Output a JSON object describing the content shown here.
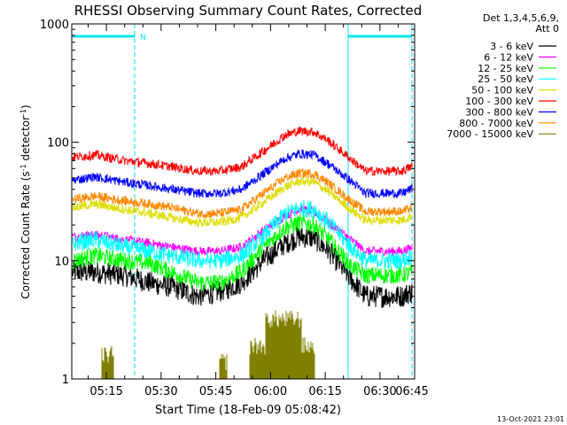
{
  "chart_data": {
    "type": "line",
    "title": "RHESSI Observing Summary Count Rates, Corrected",
    "xlabel": "Start Time (18-Feb-09 05:08:42)",
    "ylabel_parts": {
      "main": "Corrected Count Rate (s",
      "sup1": "-1",
      "mid": " detector",
      "sup2": "-1",
      "end": ")"
    },
    "y_scale": "log",
    "ylim": [
      1,
      1000
    ],
    "y_ticks": [
      {
        "value": 1,
        "label": "1"
      },
      {
        "value": 10,
        "label": "10"
      },
      {
        "value": 100,
        "label": "100"
      },
      {
        "value": 1000,
        "label": "1000"
      }
    ],
    "xlim_minutes": [
      5.5,
      99.5
    ],
    "x_ticks": [
      {
        "minutes": 15,
        "label": "05:15"
      },
      {
        "minutes": 30,
        "label": "05:30"
      },
      {
        "minutes": 45,
        "label": "05:45"
      },
      {
        "minutes": 60,
        "label": "06:00"
      },
      {
        "minutes": 75,
        "label": "06:15"
      },
      {
        "minutes": 90,
        "label": "06:30"
      },
      {
        "minutes": 105,
        "label": "06:45"
      }
    ],
    "legend_header": [
      "Det 1,3,4,5,6,9,",
      "Att 0"
    ],
    "legend_position": "right, outside plot",
    "grid": false,
    "colors": {
      "axis": "#000000",
      "spacecraft_bar": "#00e5ee",
      "boundary_line": "#00e5ee"
    },
    "series": [
      {
        "name": "3 - 6 keV",
        "color": "#000000",
        "points": [
          [
            6,
            8
          ],
          [
            12,
            8
          ],
          [
            20,
            7.5
          ],
          [
            27,
            6.5
          ],
          [
            33,
            6
          ],
          [
            40,
            5
          ],
          [
            46,
            5.5
          ],
          [
            52,
            6.5
          ],
          [
            58,
            10
          ],
          [
            64,
            14
          ],
          [
            68,
            16
          ],
          [
            72,
            15.5
          ],
          [
            76,
            12
          ],
          [
            82,
            7
          ],
          [
            86,
            5
          ],
          [
            90,
            5
          ],
          [
            96,
            5
          ],
          [
            99,
            5.5
          ]
        ]
      },
      {
        "name": "6 - 12 keV",
        "color": "#ff00ff",
        "points": [
          [
            6,
            16
          ],
          [
            12,
            16.5
          ],
          [
            20,
            15
          ],
          [
            27,
            14
          ],
          [
            33,
            13
          ],
          [
            40,
            12
          ],
          [
            46,
            12
          ],
          [
            52,
            13
          ],
          [
            58,
            18
          ],
          [
            64,
            24
          ],
          [
            68,
            27
          ],
          [
            72,
            26
          ],
          [
            76,
            21
          ],
          [
            82,
            15
          ],
          [
            86,
            12
          ],
          [
            90,
            12
          ],
          [
            96,
            12
          ],
          [
            99,
            13
          ]
        ]
      },
      {
        "name": "12 - 25 keV",
        "color": "#00ff00",
        "points": [
          [
            6,
            10
          ],
          [
            12,
            11
          ],
          [
            20,
            10
          ],
          [
            27,
            9.5
          ],
          [
            33,
            8
          ],
          [
            40,
            6.5
          ],
          [
            46,
            6.5
          ],
          [
            52,
            8
          ],
          [
            58,
            13
          ],
          [
            64,
            19
          ],
          [
            68,
            21
          ],
          [
            72,
            20
          ],
          [
            76,
            15
          ],
          [
            82,
            9
          ],
          [
            86,
            7.5
          ],
          [
            90,
            7.5
          ],
          [
            96,
            7.5
          ],
          [
            99,
            8
          ]
        ]
      },
      {
        "name": "25 - 50 keV",
        "color": "#00ffff",
        "points": [
          [
            6,
            14
          ],
          [
            12,
            15
          ],
          [
            20,
            13
          ],
          [
            27,
            12
          ],
          [
            33,
            11
          ],
          [
            40,
            10
          ],
          [
            46,
            10
          ],
          [
            52,
            11
          ],
          [
            58,
            16
          ],
          [
            64,
            25
          ],
          [
            68,
            28
          ],
          [
            72,
            27
          ],
          [
            76,
            21
          ],
          [
            82,
            13
          ],
          [
            86,
            10
          ],
          [
            90,
            10
          ],
          [
            96,
            10
          ],
          [
            99,
            11
          ]
        ]
      },
      {
        "name": "50 - 100 keV",
        "color": "#dddd00",
        "points": [
          [
            6,
            28
          ],
          [
            12,
            30
          ],
          [
            20,
            27
          ],
          [
            27,
            25
          ],
          [
            33,
            23
          ],
          [
            40,
            21
          ],
          [
            46,
            21
          ],
          [
            52,
            23
          ],
          [
            58,
            31
          ],
          [
            64,
            42
          ],
          [
            68,
            47
          ],
          [
            72,
            46
          ],
          [
            76,
            38
          ],
          [
            82,
            27
          ],
          [
            86,
            22
          ],
          [
            90,
            22
          ],
          [
            96,
            22
          ],
          [
            99,
            24
          ]
        ]
      },
      {
        "name": "100 - 300 keV",
        "color": "#ff0000",
        "points": [
          [
            6,
            75
          ],
          [
            12,
            78
          ],
          [
            20,
            70
          ],
          [
            27,
            66
          ],
          [
            33,
            62
          ],
          [
            40,
            57
          ],
          [
            46,
            57
          ],
          [
            52,
            62
          ],
          [
            58,
            84
          ],
          [
            64,
            115
          ],
          [
            68,
            125
          ],
          [
            72,
            122
          ],
          [
            76,
            102
          ],
          [
            82,
            72
          ],
          [
            86,
            57
          ],
          [
            90,
            57
          ],
          [
            96,
            57
          ],
          [
            99,
            63
          ]
        ]
      },
      {
        "name": "300 - 800 keV",
        "color": "#0000ff",
        "points": [
          [
            6,
            48
          ],
          [
            12,
            51
          ],
          [
            20,
            46
          ],
          [
            27,
            43
          ],
          [
            33,
            40
          ],
          [
            40,
            37
          ],
          [
            46,
            37
          ],
          [
            52,
            40
          ],
          [
            58,
            54
          ],
          [
            64,
            73
          ],
          [
            68,
            80
          ],
          [
            72,
            78
          ],
          [
            76,
            65
          ],
          [
            82,
            47
          ],
          [
            86,
            37
          ],
          [
            90,
            37
          ],
          [
            96,
            37
          ],
          [
            99,
            41
          ]
        ]
      },
      {
        "name": "800 - 7000 keV",
        "color": "#ff8800",
        "points": [
          [
            6,
            33
          ],
          [
            12,
            35
          ],
          [
            20,
            32
          ],
          [
            27,
            30
          ],
          [
            33,
            28
          ],
          [
            40,
            25
          ],
          [
            46,
            25
          ],
          [
            52,
            27
          ],
          [
            58,
            37
          ],
          [
            64,
            50
          ],
          [
            68,
            55
          ],
          [
            72,
            54
          ],
          [
            76,
            45
          ],
          [
            82,
            32
          ],
          [
            86,
            26
          ],
          [
            90,
            26
          ],
          [
            96,
            26
          ],
          [
            99,
            28
          ]
        ]
      },
      {
        "name": "7000 - 15000 keV",
        "color": "#808000",
        "points": []
      }
    ],
    "annotations": {
      "footer_date": "13-Oct-2021 23:01",
      "attenuator_marker": "N"
    }
  }
}
